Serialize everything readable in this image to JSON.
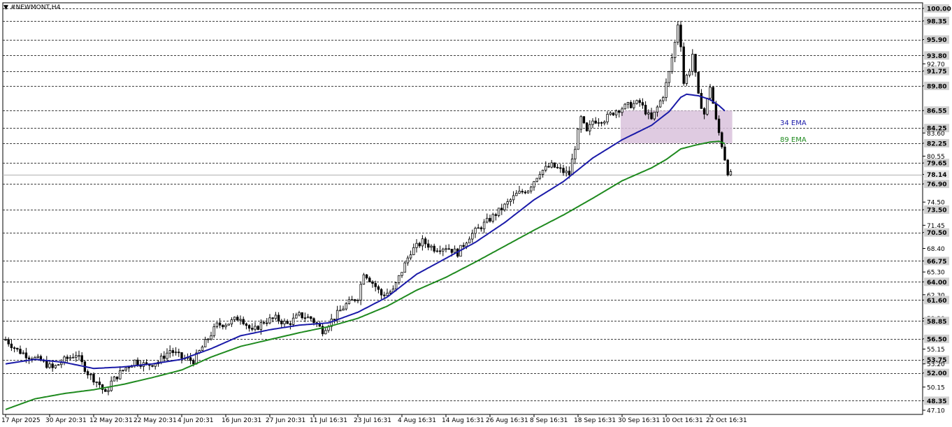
{
  "header": {
    "title": "#NEWMONT,H4"
  },
  "colors": {
    "ema34": "#1a1aa8",
    "ema89": "#1f8a1f",
    "zone": "#d9c2dc",
    "candle": "#000000",
    "grid": "#000000",
    "current_price_line": "#b0b0b0"
  },
  "chart_data": {
    "type": "candlestick",
    "symbol": "#NEWMONT",
    "timeframe": "H4",
    "ylim": [
      47.1,
      100.0
    ],
    "y_ticks": [
      "100.00",
      "98.35",
      "95.90",
      "93.80",
      "92.70",
      "91.75",
      "89.80",
      "86.55",
      "84.25",
      "83.60",
      "82.25",
      "80.55",
      "79.65",
      "78.14",
      "76.90",
      "74.50",
      "73.50",
      "71.45",
      "70.50",
      "68.40",
      "66.75",
      "65.30",
      "64.00",
      "62.30",
      "61.60",
      "59.20",
      "58.85",
      "56.50",
      "55.15",
      "53.75",
      "53.20",
      "52.00",
      "50.15",
      "48.35",
      "47.10"
    ],
    "dashed_levels": [
      100.0,
      98.35,
      95.9,
      93.8,
      91.75,
      89.8,
      86.55,
      84.25,
      82.25,
      79.65,
      76.9,
      73.5,
      70.5,
      66.75,
      64.0,
      61.6,
      58.85,
      56.5,
      53.75,
      52.0,
      48.35
    ],
    "highlighted_labels": [
      "100.00",
      "98.35",
      "95.90",
      "93.80",
      "91.75",
      "89.80",
      "86.55",
      "84.25",
      "82.25",
      "79.65",
      "76.90",
      "73.50",
      "70.50",
      "66.75",
      "64.00",
      "61.60",
      "58.85",
      "56.50",
      "53.75",
      "52.00",
      "48.35"
    ],
    "current_price": 78.14,
    "x_labels": [
      "17 Apr 2025",
      "30 Apr 20:31",
      "12 May 20:31",
      "22 May 20:31",
      "4 Jun 20:31",
      "16 Jun 20:31",
      "27 Jun 20:31",
      "11 Jul 16:31",
      "23 Jul 16:31",
      "4 Aug 16:31",
      "14 Aug 16:31",
      "26 Aug 16:31",
      "8 Sep 16:31",
      "18 Sep 16:31",
      "30 Sep 16:31",
      "10 Oct 16:31",
      "22 Oct 16:31"
    ],
    "x_label_slots": [
      0,
      15,
      30,
      45,
      60,
      75,
      90,
      105,
      120,
      135,
      150,
      165,
      180,
      195,
      210,
      225,
      240
    ],
    "n_slots": 248,
    "close_anchors": [
      [
        0,
        56.4
      ],
      [
        4,
        55.0
      ],
      [
        8,
        54.2
      ],
      [
        12,
        53.6
      ],
      [
        16,
        52.6
      ],
      [
        20,
        53.7
      ],
      [
        24,
        54.5
      ],
      [
        28,
        52.0
      ],
      [
        32,
        50.5
      ],
      [
        34,
        49.2
      ],
      [
        36,
        50.8
      ],
      [
        40,
        52.4
      ],
      [
        44,
        53.6
      ],
      [
        48,
        53.0
      ],
      [
        52,
        53.5
      ],
      [
        56,
        55.0
      ],
      [
        60,
        54.0
      ],
      [
        64,
        53.6
      ],
      [
        68,
        56.0
      ],
      [
        72,
        58.3
      ],
      [
        76,
        58.6
      ],
      [
        80,
        59.4
      ],
      [
        84,
        57.4
      ],
      [
        88,
        58.8
      ],
      [
        92,
        59.2
      ],
      [
        96,
        58.4
      ],
      [
        100,
        59.6
      ],
      [
        104,
        59.2
      ],
      [
        108,
        57.6
      ],
      [
        112,
        59.4
      ],
      [
        116,
        61.0
      ],
      [
        120,
        62.0
      ],
      [
        122,
        65.3
      ],
      [
        126,
        63.4
      ],
      [
        128,
        62.3
      ],
      [
        132,
        62.8
      ],
      [
        134,
        64.6
      ],
      [
        138,
        68.0
      ],
      [
        142,
        69.3
      ],
      [
        146,
        68.4
      ],
      [
        150,
        68.6
      ],
      [
        154,
        67.8
      ],
      [
        158,
        70.0
      ],
      [
        162,
        71.3
      ],
      [
        166,
        72.6
      ],
      [
        170,
        74.0
      ],
      [
        174,
        75.5
      ],
      [
        178,
        76.2
      ],
      [
        182,
        78.5
      ],
      [
        186,
        79.3
      ],
      [
        190,
        78.5
      ],
      [
        192,
        78.2
      ],
      [
        194,
        81.8
      ],
      [
        196,
        85.5
      ],
      [
        198,
        83.6
      ],
      [
        200,
        85.2
      ],
      [
        204,
        85.4
      ],
      [
        208,
        86.6
      ],
      [
        212,
        87.2
      ],
      [
        216,
        87.6
      ],
      [
        220,
        85.3
      ],
      [
        224,
        88.6
      ],
      [
        226,
        91.5
      ],
      [
        228,
        95.5
      ],
      [
        229,
        98.0
      ],
      [
        230,
        95.3
      ],
      [
        231,
        90.2
      ],
      [
        233,
        92.0
      ],
      [
        234,
        94.0
      ],
      [
        236,
        88.4
      ],
      [
        238,
        86.1
      ],
      [
        240,
        89.8
      ],
      [
        242,
        85.2
      ],
      [
        244,
        82.0
      ],
      [
        246,
        78.5
      ],
      [
        247,
        78.1
      ]
    ],
    "ema34_anchors": [
      [
        0,
        53.2
      ],
      [
        10,
        53.8
      ],
      [
        20,
        53.4
      ],
      [
        30,
        52.6
      ],
      [
        40,
        52.8
      ],
      [
        50,
        53.2
      ],
      [
        60,
        53.8
      ],
      [
        70,
        55.2
      ],
      [
        80,
        56.9
      ],
      [
        90,
        57.7
      ],
      [
        100,
        58.3
      ],
      [
        110,
        58.6
      ],
      [
        120,
        60.0
      ],
      [
        130,
        62.0
      ],
      [
        140,
        65.0
      ],
      [
        150,
        67.1
      ],
      [
        160,
        69.2
      ],
      [
        170,
        71.8
      ],
      [
        180,
        74.8
      ],
      [
        190,
        77.2
      ],
      [
        200,
        80.3
      ],
      [
        210,
        82.7
      ],
      [
        220,
        84.6
      ],
      [
        226,
        86.4
      ],
      [
        230,
        88.3
      ],
      [
        232,
        88.7
      ],
      [
        236,
        88.5
      ],
      [
        240,
        88.0
      ],
      [
        243,
        87.2
      ],
      [
        245,
        86.5
      ]
    ],
    "ema89_anchors": [
      [
        0,
        47.2
      ],
      [
        10,
        48.6
      ],
      [
        20,
        49.3
      ],
      [
        30,
        49.8
      ],
      [
        40,
        50.5
      ],
      [
        50,
        51.4
      ],
      [
        60,
        52.4
      ],
      [
        70,
        54.1
      ],
      [
        80,
        55.5
      ],
      [
        90,
        56.4
      ],
      [
        100,
        57.3
      ],
      [
        110,
        58.1
      ],
      [
        120,
        59.2
      ],
      [
        130,
        60.8
      ],
      [
        140,
        62.9
      ],
      [
        150,
        64.6
      ],
      [
        160,
        66.6
      ],
      [
        170,
        68.7
      ],
      [
        180,
        70.8
      ],
      [
        190,
        72.8
      ],
      [
        200,
        75.0
      ],
      [
        210,
        77.3
      ],
      [
        220,
        79.0
      ],
      [
        225,
        80.1
      ],
      [
        230,
        81.5
      ],
      [
        235,
        82.0
      ],
      [
        240,
        82.4
      ],
      [
        243,
        82.5
      ],
      [
        245,
        82.2
      ]
    ],
    "zone": {
      "slot_start": 210,
      "slot_end": 248,
      "top": 86.55,
      "bottom": 82.25
    },
    "annotations": [
      {
        "text": "34 EMA",
        "color": "#1a1aa8",
        "at_price": 84.9
      },
      {
        "text": "89 EMA",
        "color": "#1f8a1f",
        "at_price": 82.7
      }
    ]
  }
}
